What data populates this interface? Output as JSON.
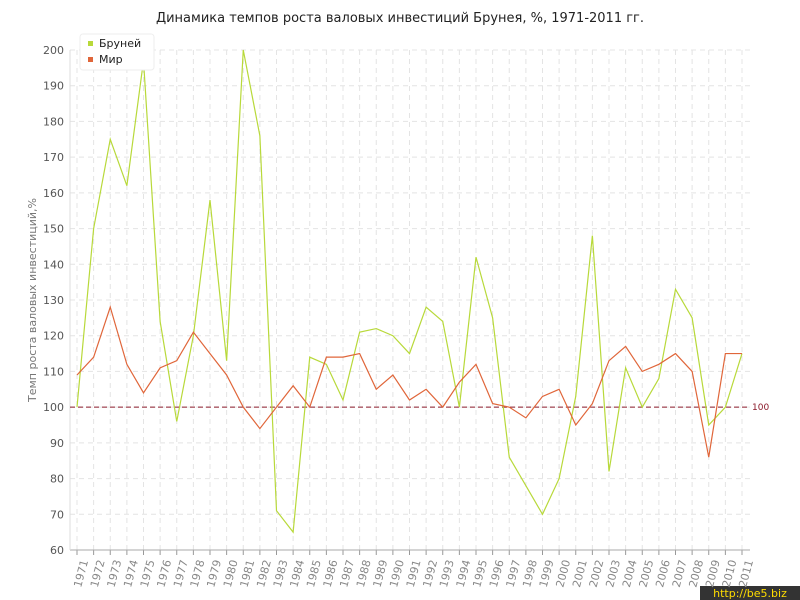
{
  "chart_data": {
    "type": "line",
    "title": "Динамика темпов роста валовых инвестиций Брунея, %, 1971-2011 гг.",
    "y_label": "Темп роста валовых инвестиций,%",
    "categories": [
      "1971",
      "1972",
      "1973",
      "1974",
      "1975",
      "1976",
      "1977",
      "1978",
      "1979",
      "1980",
      "1981",
      "1982",
      "1983",
      "1984",
      "1985",
      "1986",
      "1987",
      "1988",
      "1989",
      "1990",
      "1991",
      "1992",
      "1993",
      "1994",
      "1995",
      "1996",
      "1997",
      "1998",
      "1999",
      "2000",
      "2001",
      "2002",
      "2003",
      "2004",
      "2005",
      "2006",
      "2007",
      "2008",
      "2009",
      "2010",
      "2011"
    ],
    "series": [
      {
        "name": "Бруней",
        "color": "#b8d93a",
        "values": [
          100,
          150,
          175,
          162,
          197,
          124,
          96,
          120,
          158,
          113,
          200,
          176,
          71,
          65,
          114,
          112,
          102,
          121,
          122,
          120,
          115,
          128,
          124,
          100,
          142,
          125,
          86,
          78,
          70,
          80,
          103,
          148,
          82,
          111,
          100,
          108,
          133,
          125,
          95,
          100,
          115
        ]
      },
      {
        "name": "Мир",
        "color": "#e0663a",
        "values": [
          109,
          114,
          128,
          112,
          104,
          111,
          113,
          121,
          115,
          109,
          100,
          94,
          100,
          106,
          100,
          114,
          114,
          115,
          105,
          109,
          102,
          105,
          100,
          107,
          112,
          101,
          100,
          97,
          103,
          105,
          95,
          101,
          113,
          117,
          110,
          112,
          115,
          110,
          86,
          115,
          115
        ]
      }
    ],
    "ylim": [
      60,
      200
    ],
    "yticks": [
      60,
      70,
      80,
      90,
      100,
      110,
      120,
      130,
      140,
      150,
      160,
      170,
      180,
      190,
      200
    ],
    "reference_line": 100,
    "grid": true,
    "legend": "top-left",
    "watermark": "http://be5.biz"
  }
}
